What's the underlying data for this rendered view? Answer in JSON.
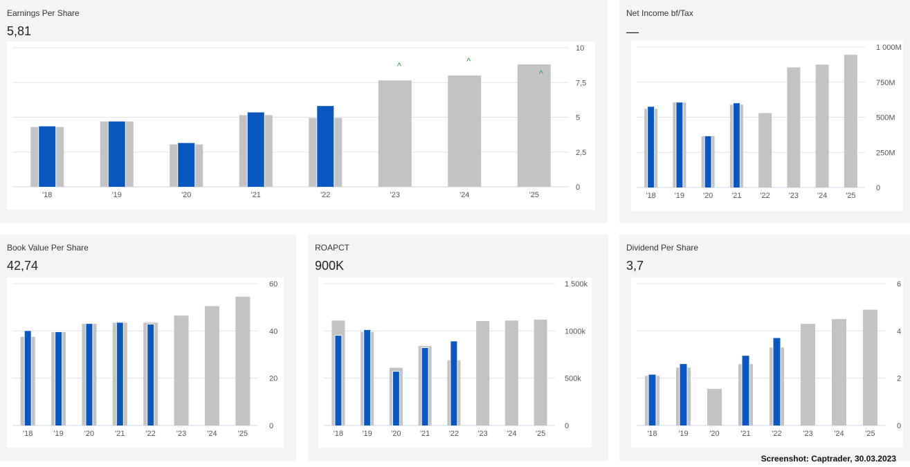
{
  "colors": {
    "reported": "#0b57c2",
    "estimate": "#c3c3c3",
    "grid": "#e3e3e3",
    "baseline": "#cfd8e6",
    "axis_text": "#555555",
    "upward_marker": "#1e9e3a"
  },
  "footer": "Screenshot: Captrader, 30.03.2023",
  "charts": [
    {
      "title": "Earnings Per Share",
      "value": "5,81",
      "chart_data": {
        "type": "bar",
        "categories": [
          "'18",
          "'19",
          "'20",
          "'21",
          "'22",
          "'23",
          "'24",
          "'25"
        ],
        "series": [
          {
            "role": "estimate",
            "values": [
              4.3,
              4.7,
              3.05,
              5.15,
              4.95,
              7.65,
              8.0,
              8.8
            ]
          },
          {
            "role": "reported",
            "values": [
              4.35,
              4.7,
              3.15,
              5.35,
              5.81,
              null,
              null,
              null
            ]
          }
        ],
        "markers": [
          {
            "category": "'23",
            "symbol": "^",
            "at": 8.65
          },
          {
            "category": "'24",
            "symbol": "^",
            "at": 9.0
          },
          {
            "category": "'25",
            "symbol": "^",
            "at": 8.1
          }
        ],
        "yticks": [
          "10",
          "7,5",
          "5",
          "2,5",
          "0"
        ],
        "ytick_values": [
          10,
          7.5,
          5,
          2.5,
          0
        ],
        "ylim": [
          0,
          10
        ]
      }
    },
    {
      "title": "Net Income bf/Tax",
      "value": "—",
      "chart_data": {
        "type": "bar",
        "categories": [
          "'18",
          "'19",
          "'20",
          "'21",
          "'22",
          "'23",
          "'24",
          "'25"
        ],
        "series": [
          {
            "role": "estimate",
            "values": [
              560,
              605,
              365,
              590,
              530,
              855,
              875,
              945
            ]
          },
          {
            "role": "reported",
            "values": [
              575,
              605,
              365,
              600,
              null,
              null,
              null,
              null
            ]
          }
        ],
        "yticks": [
          "1 000M",
          "750M",
          "500M",
          "250M",
          "0"
        ],
        "ytick_values": [
          1000,
          750,
          500,
          250,
          0
        ],
        "ylim": [
          0,
          1000
        ]
      }
    },
    {
      "title": "Book Value Per Share",
      "value": "42,74",
      "chart_data": {
        "type": "bar",
        "categories": [
          "'18",
          "'19",
          "'20",
          "'21",
          "'22",
          "'23",
          "'24",
          "'25"
        ],
        "series": [
          {
            "role": "estimate",
            "values": [
              37.5,
              39.5,
              43.0,
              43.5,
              43.5,
              46.5,
              50.5,
              54.5
            ]
          },
          {
            "role": "reported",
            "values": [
              40.0,
              39.5,
              43.0,
              43.5,
              42.74,
              null,
              null,
              null
            ]
          }
        ],
        "yticks": [
          "60",
          "40",
          "20",
          "0"
        ],
        "ytick_values": [
          60,
          40,
          20,
          0
        ],
        "ylim": [
          0,
          60
        ]
      }
    },
    {
      "title": "ROAPCT",
      "value": "900K",
      "chart_data": {
        "type": "bar",
        "categories": [
          "'18",
          "'19",
          "'20",
          "'21",
          "'22",
          "'23",
          "'24",
          "'25"
        ],
        "series": [
          {
            "role": "estimate",
            "values": [
              1110,
              990,
              610,
              840,
              690,
              1105,
              1110,
              1120
            ]
          },
          {
            "role": "reported",
            "values": [
              950,
              1010,
              570,
              820,
              890,
              null,
              null,
              null
            ]
          }
        ],
        "yticks": [
          "1 500k",
          "1000k",
          "500k",
          "0"
        ],
        "ytick_values": [
          1500,
          1000,
          500,
          0
        ],
        "ylim": [
          0,
          1500
        ]
      }
    },
    {
      "title": "Dividend Per Share",
      "value": "3,7",
      "chart_data": {
        "type": "bar",
        "categories": [
          "'18",
          "'19",
          "'20",
          "'21",
          "'22",
          "'23",
          "'24",
          "'25"
        ],
        "series": [
          {
            "role": "estimate",
            "values": [
              2.1,
              2.45,
              1.55,
              2.6,
              3.3,
              4.3,
              4.5,
              4.9
            ]
          },
          {
            "role": "reported",
            "values": [
              2.15,
              2.6,
              null,
              2.95,
              3.7,
              null,
              null,
              null
            ]
          }
        ],
        "yticks": [
          "6",
          "4",
          "2",
          "0"
        ],
        "ytick_values": [
          6,
          4,
          2,
          0
        ],
        "ylim": [
          0,
          6
        ]
      }
    }
  ]
}
